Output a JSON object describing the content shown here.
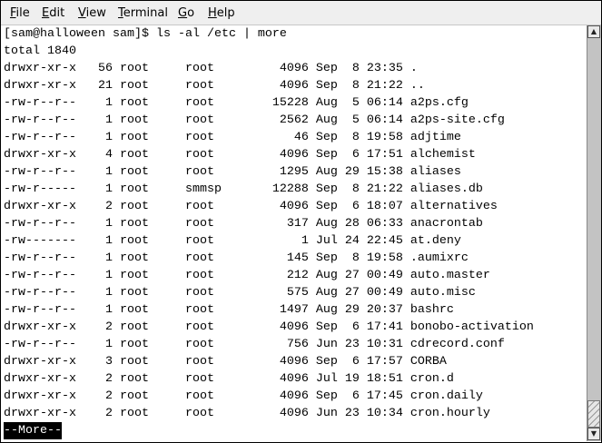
{
  "menubar": {
    "items": [
      {
        "label": "File",
        "mnemonic": "F",
        "rest": "ile"
      },
      {
        "label": "Edit",
        "mnemonic": "E",
        "rest": "dit"
      },
      {
        "label": "View",
        "mnemonic": "V",
        "rest": "iew"
      },
      {
        "label": "Terminal",
        "mnemonic": "T",
        "rest": "erminal"
      },
      {
        "label": "Go",
        "mnemonic": "G",
        "rest": "o"
      },
      {
        "label": "Help",
        "mnemonic": "H",
        "rest": "elp"
      }
    ]
  },
  "terminal": {
    "lines": [
      "[sam@halloween sam]$ ls -al /etc | more",
      "total 1840",
      "drwxr-xr-x   56 root     root         4096 Sep  8 23:35 .",
      "drwxr-xr-x   21 root     root         4096 Sep  8 21:22 ..",
      "-rw-r--r--    1 root     root        15228 Aug  5 06:14 a2ps.cfg",
      "-rw-r--r--    1 root     root         2562 Aug  5 06:14 a2ps-site.cfg",
      "-rw-r--r--    1 root     root           46 Sep  8 19:58 adjtime",
      "drwxr-xr-x    4 root     root         4096 Sep  6 17:51 alchemist",
      "-rw-r--r--    1 root     root         1295 Aug 29 15:38 aliases",
      "-rw-r-----    1 root     smmsp       12288 Sep  8 21:22 aliases.db",
      "drwxr-xr-x    2 root     root         4096 Sep  6 18:07 alternatives",
      "-rw-r--r--    1 root     root          317 Aug 28 06:33 anacrontab",
      "-rw-------    1 root     root            1 Jul 24 22:45 at.deny",
      "-rw-r--r--    1 root     root          145 Sep  8 19:58 .aumixrc",
      "-rw-r--r--    1 root     root          212 Aug 27 00:49 auto.master",
      "-rw-r--r--    1 root     root          575 Aug 27 00:49 auto.misc",
      "-rw-r--r--    1 root     root         1497 Aug 29 20:37 bashrc",
      "drwxr-xr-x    2 root     root         4096 Sep  6 17:41 bonobo-activation",
      "-rw-r--r--    1 root     root          756 Jun 23 10:31 cdrecord.conf",
      "drwxr-xr-x    3 root     root         4096 Sep  6 17:57 CORBA",
      "drwxr-xr-x    2 root     root         4096 Jul 19 18:51 cron.d",
      "drwxr-xr-x    2 root     root         4096 Sep  6 17:45 cron.daily",
      "drwxr-xr-x    2 root     root         4096 Jun 23 10:34 cron.hourly"
    ],
    "pager_prompt": "--More--"
  },
  "scrollbar": {
    "position_percent": 100
  }
}
